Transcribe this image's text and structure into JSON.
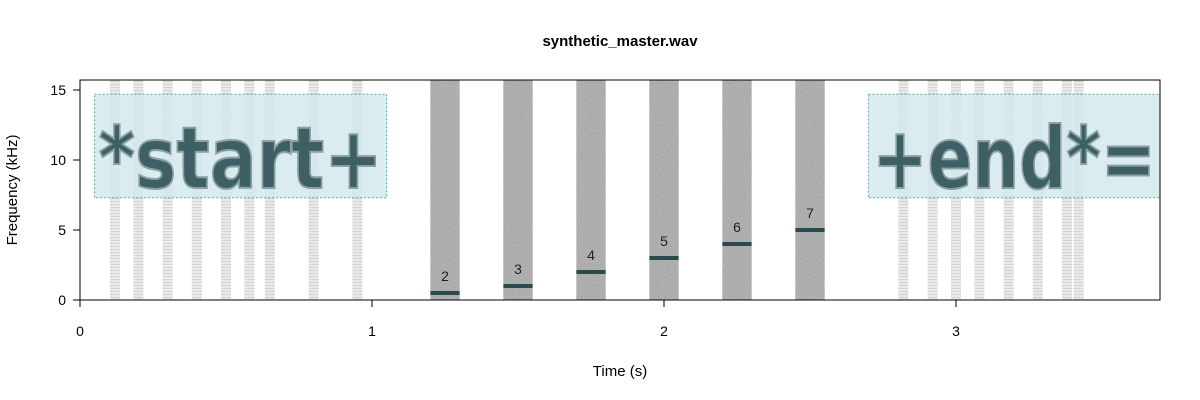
{
  "chart_data": {
    "type": "spectrogram",
    "title": "synthetic_master.wav",
    "xlabel": "Time (s)",
    "ylabel": "Frequency (kHz)",
    "xlim": [
      0,
      3.7
    ],
    "ylim": [
      0,
      15.7
    ],
    "x_ticks": [
      0,
      1,
      2,
      3
    ],
    "y_ticks": [
      0,
      5,
      10,
      15
    ],
    "colors": {
      "noise": "#a9a9a9",
      "tone": "#2b4a4e",
      "box_fill": "#d5e9ee",
      "box_border": "#3a9aa8",
      "faint_noise": "#d4d4d4"
    },
    "bursts": [
      {
        "label": "2",
        "x_start": 1.2,
        "x_end": 1.3,
        "tone_khz": 0.5
      },
      {
        "label": "3",
        "x_start": 1.45,
        "x_end": 1.55,
        "tone_khz": 1.0
      },
      {
        "label": "4",
        "x_start": 1.7,
        "x_end": 1.8,
        "tone_khz": 2.0
      },
      {
        "label": "5",
        "x_start": 1.95,
        "x_end": 2.05,
        "tone_khz": 3.0
      },
      {
        "label": "6",
        "x_start": 2.2,
        "x_end": 2.3,
        "tone_khz": 4.0
      },
      {
        "label": "7",
        "x_start": 2.45,
        "x_end": 2.55,
        "tone_khz": 5.0
      }
    ],
    "annotation_boxes": [
      {
        "text": "*start+",
        "x_start": 0.05,
        "x_end": 1.05,
        "y_low": 7.3,
        "y_high": 14.7
      },
      {
        "text": "+end*=",
        "x_start": 2.7,
        "x_end": 3.7,
        "y_low": 7.3,
        "y_high": 14.7
      }
    ],
    "faint_streaks": [
      0.12,
      0.2,
      0.3,
      0.4,
      0.5,
      0.58,
      0.65,
      0.8,
      0.95,
      2.82,
      2.92,
      3.0,
      3.08,
      3.18,
      3.28,
      3.38,
      3.42
    ],
    "grid": false,
    "legend": "none"
  }
}
